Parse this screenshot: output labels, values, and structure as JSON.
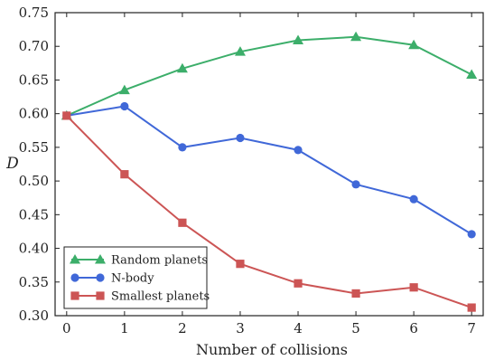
{
  "chart_data": {
    "type": "line",
    "title": "",
    "xlabel": "Number of collisions",
    "ylabel": "D",
    "xlim": [
      -0.2,
      7.2
    ],
    "ylim": [
      0.3,
      0.75
    ],
    "xticks": [
      0,
      1,
      2,
      3,
      4,
      5,
      6,
      7
    ],
    "yticks": [
      0.3,
      0.35,
      0.4,
      0.45,
      0.5,
      0.55,
      0.6,
      0.65,
      0.7,
      0.75
    ],
    "grid": false,
    "legend_position": "lower-left",
    "x": [
      0,
      1,
      2,
      3,
      4,
      5,
      6,
      7
    ],
    "series": [
      {
        "name": "Random planets",
        "color": "#3cae6a",
        "marker": "triangle",
        "values": [
          0.597,
          0.635,
          0.667,
          0.692,
          0.709,
          0.714,
          0.702,
          0.658
        ]
      },
      {
        "name": "N-body",
        "color": "#4068d8",
        "marker": "circle",
        "values": [
          0.597,
          0.611,
          0.55,
          0.564,
          0.546,
          0.495,
          0.473,
          0.421
        ]
      },
      {
        "name": "Smallest planets",
        "color": "#cc5555",
        "marker": "square",
        "values": [
          0.597,
          0.51,
          0.438,
          0.377,
          0.348,
          0.333,
          0.342,
          0.312
        ]
      }
    ]
  }
}
